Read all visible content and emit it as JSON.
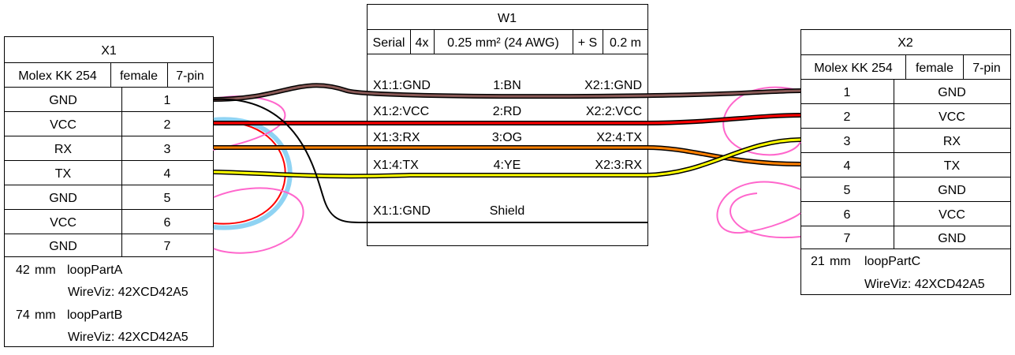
{
  "x1": {
    "title": "X1",
    "type": "Molex KK 254",
    "gender": "female",
    "pincount": "7-pin",
    "pins": [
      {
        "label": "GND",
        "num": "1"
      },
      {
        "label": "VCC",
        "num": "2"
      },
      {
        "label": "RX",
        "num": "3"
      },
      {
        "label": "TX",
        "num": "4"
      },
      {
        "label": "GND",
        "num": "5"
      },
      {
        "label": "VCC",
        "num": "6"
      },
      {
        "label": "GND",
        "num": "7"
      }
    ],
    "loops": [
      {
        "length": "42",
        "unit": "mm",
        "name": "loopPartA",
        "source": "WireViz: 42XCD42A5"
      },
      {
        "length": "74",
        "unit": "mm",
        "name": "loopPartB",
        "source": "WireViz: 42XCD42A5"
      }
    ]
  },
  "w1": {
    "title": "W1",
    "attrs": [
      "Serial",
      "4x",
      "0.25 mm² (24 AWG)",
      "+ S",
      "0.2 m"
    ],
    "wires": [
      {
        "left": "X1:1:GND",
        "mid": "1:BN",
        "right": "X2:1:GND"
      },
      {
        "left": "X1:2:VCC",
        "mid": "2:RD",
        "right": "X2:2:VCC"
      },
      {
        "left": "X1:3:RX",
        "mid": "3:OG",
        "right": "X2:4:TX"
      },
      {
        "left": "X1:4:TX",
        "mid": "4:YE",
        "right": "X2:3:RX"
      }
    ],
    "shield": {
      "left": "X1:1:GND",
      "mid": "Shield"
    }
  },
  "x2": {
    "title": "X2",
    "type": "Molex KK 254",
    "gender": "female",
    "pincount": "7-pin",
    "pins": [
      {
        "num": "1",
        "label": "GND"
      },
      {
        "num": "2",
        "label": "VCC"
      },
      {
        "num": "3",
        "label": "RX"
      },
      {
        "num": "4",
        "label": "TX"
      },
      {
        "num": "5",
        "label": "GND"
      },
      {
        "num": "6",
        "label": "VCC"
      },
      {
        "num": "7",
        "label": "GND"
      }
    ],
    "loops": [
      {
        "length": "21",
        "unit": "mm",
        "name": "loopPartC",
        "source": "WireViz: 42XCD42A5"
      }
    ]
  },
  "colors": {
    "brown": "#895956",
    "red": "#ff0000",
    "orange": "#ff8000",
    "yellow": "#ffff00",
    "loop": "#ff66cc",
    "loop_blue": "#8fd3f3",
    "shield": "#000000"
  }
}
